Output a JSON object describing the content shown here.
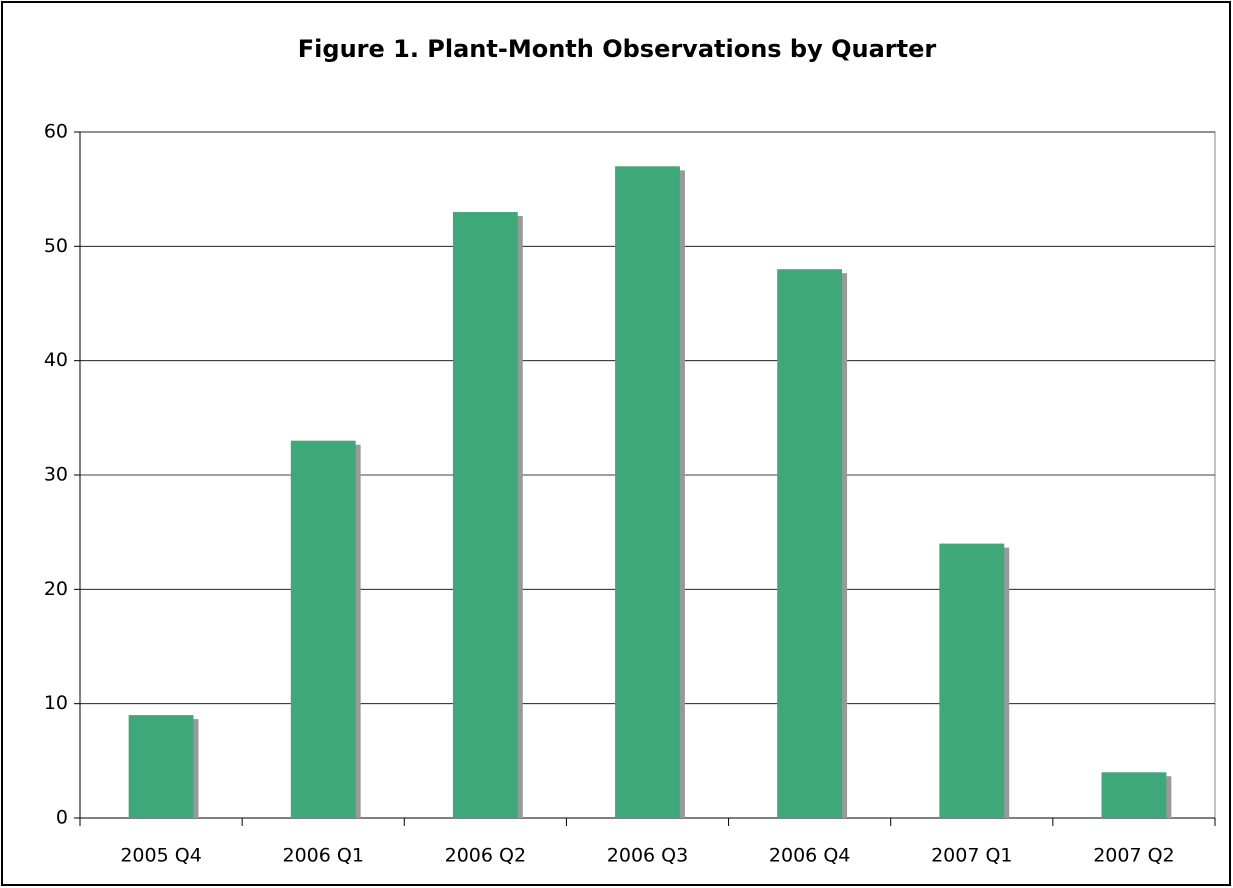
{
  "chart_data": {
    "type": "bar",
    "title": "Figure 1.  Plant-Month Observations by Quarter",
    "categories": [
      "2005 Q4",
      "2006 Q1",
      "2006 Q2",
      "2006 Q3",
      "2006 Q4",
      "2007 Q1",
      "2007 Q2"
    ],
    "values": [
      9,
      33,
      53,
      57,
      48,
      24,
      4
    ],
    "color": "#3fa87b",
    "shadow_color": "#999999",
    "ylim": [
      0,
      60
    ],
    "yticks": [
      0,
      10,
      20,
      30,
      40,
      50,
      60
    ],
    "grid": true
  }
}
